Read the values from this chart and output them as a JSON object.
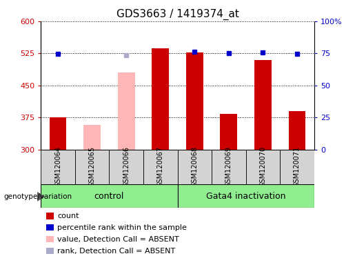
{
  "title": "GDS3663 / 1419374_at",
  "samples": [
    "GSM120064",
    "GSM120065",
    "GSM120066",
    "GSM120067",
    "GSM120068",
    "GSM120069",
    "GSM120070",
    "GSM120071"
  ],
  "bar_values": [
    376,
    null,
    null,
    537,
    527,
    383,
    510,
    390
  ],
  "bar_absent_values": [
    null,
    358,
    480,
    null,
    null,
    null,
    null,
    null
  ],
  "dot_values": [
    524,
    null,
    null,
    null,
    529,
    526,
    527,
    524
  ],
  "dot_absent_values": [
    null,
    null,
    521,
    null,
    null,
    null,
    null,
    null
  ],
  "bar_color": "#cc0000",
  "bar_absent_color": "#ffb6b6",
  "dot_color": "#0000cc",
  "dot_absent_color": "#aaaacc",
  "ylim_left": [
    300,
    600
  ],
  "ylim_right": [
    0,
    100
  ],
  "yticks_left": [
    300,
    375,
    450,
    525,
    600
  ],
  "yticks_right": [
    0,
    25,
    50,
    75,
    100
  ],
  "group_label_text": "genotype/variation",
  "legend_items": [
    {
      "label": "count",
      "color": "#cc0000"
    },
    {
      "label": "percentile rank within the sample",
      "color": "#0000cc"
    },
    {
      "label": "value, Detection Call = ABSENT",
      "color": "#ffb6b6"
    },
    {
      "label": "rank, Detection Call = ABSENT",
      "color": "#aaaacc"
    }
  ],
  "bar_width": 0.5,
  "tick_label_color_left": "#cc0000",
  "tick_label_color_right": "#0000cc",
  "title_fontsize": 11,
  "axis_fontsize": 8,
  "legend_fontsize": 8,
  "sample_label_fontsize": 7,
  "group_label_fontsize": 9
}
